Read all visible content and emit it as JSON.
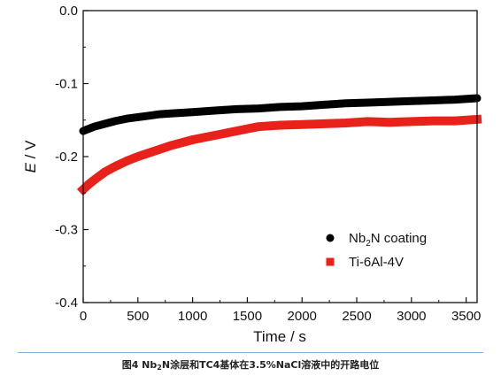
{
  "chart_data": {
    "type": "line",
    "title": "",
    "xlabel": "Time / s",
    "ylabel_italic": "E",
    "ylabel_unit": " / V",
    "xlim": [
      0,
      3600
    ],
    "ylim": [
      -0.4,
      0.0
    ],
    "xticks": [
      0,
      500,
      1000,
      1500,
      2000,
      2500,
      3000,
      3500
    ],
    "yticks": [
      0.0,
      -0.1,
      -0.2,
      -0.3,
      -0.4
    ],
    "ytick_labels": [
      "0.0",
      "-0.1",
      "-0.2",
      "-0.3",
      "-0.4"
    ],
    "grid": false,
    "legend_position": "bottom-right",
    "series": [
      {
        "name_main": "Nb",
        "name_sub": "2",
        "name_rest": "N coating",
        "color": "#000000",
        "marker": "circle",
        "x": [
          0,
          100,
          200,
          300,
          400,
          500,
          600,
          700,
          800,
          900,
          1000,
          1200,
          1400,
          1600,
          1800,
          2000,
          2200,
          2400,
          2600,
          2800,
          3000,
          3200,
          3400,
          3600
        ],
        "y": [
          -0.165,
          -0.159,
          -0.155,
          -0.151,
          -0.148,
          -0.146,
          -0.144,
          -0.142,
          -0.141,
          -0.14,
          -0.139,
          -0.137,
          -0.135,
          -0.134,
          -0.132,
          -0.131,
          -0.129,
          -0.127,
          -0.126,
          -0.125,
          -0.124,
          -0.123,
          -0.122,
          -0.12
        ]
      },
      {
        "name": "Ti-6Al-4V",
        "color": "#e8221b",
        "marker": "square",
        "x": [
          0,
          50,
          100,
          200,
          300,
          400,
          500,
          600,
          700,
          800,
          900,
          1000,
          1100,
          1200,
          1300,
          1400,
          1500,
          1600,
          1700,
          1800,
          2000,
          2200,
          2400,
          2600,
          2800,
          3000,
          3200,
          3400,
          3600
        ],
        "y": [
          -0.245,
          -0.238,
          -0.232,
          -0.221,
          -0.213,
          -0.206,
          -0.2,
          -0.195,
          -0.19,
          -0.185,
          -0.181,
          -0.177,
          -0.174,
          -0.171,
          -0.168,
          -0.165,
          -0.162,
          -0.159,
          -0.158,
          -0.157,
          -0.156,
          -0.155,
          -0.154,
          -0.152,
          -0.153,
          -0.152,
          -0.151,
          -0.151,
          -0.149
        ]
      }
    ]
  },
  "caption": {
    "prefix": "图4   Nb",
    "sub": "2",
    "suffix": "N涂层和TC4基体在3.5%NaCl溶液中的开路电位"
  }
}
